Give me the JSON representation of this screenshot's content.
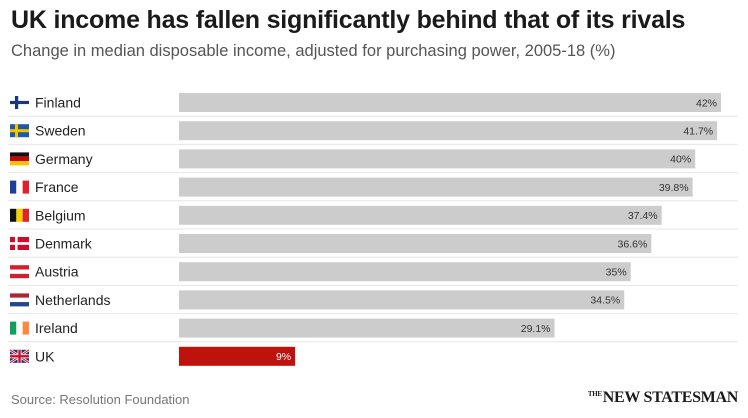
{
  "title": "UK income has fallen significantly behind that of its rivals",
  "subtitle": "Change in median disposable income, adjusted for purchasing power, 2005-18 (%)",
  "source": "Source: Resolution Foundation",
  "brand": {
    "the": "THE",
    "name": "NEW STATESMAN"
  },
  "colors": {
    "bar": "#cccccc",
    "highlight": "#c0120c",
    "label": "#333333",
    "highlight_label": "#ffffff"
  },
  "chart_data": {
    "type": "bar",
    "orientation": "horizontal",
    "title": "UK income has fallen significantly behind that of its rivals",
    "subtitle": "Change in median disposable income, adjusted for purchasing power, 2005-18 (%)",
    "categories": [
      "Finland",
      "Sweden",
      "Germany",
      "France",
      "Belgium",
      "Denmark",
      "Austria",
      "Netherlands",
      "Ireland",
      "UK"
    ],
    "values": [
      42,
      41.7,
      40,
      39.8,
      37.4,
      36.6,
      35,
      34.5,
      29.1,
      9
    ],
    "value_labels": [
      "42%",
      "41.7%",
      "40%",
      "39.8%",
      "37.4%",
      "36.6%",
      "35%",
      "34.5%",
      "29.1%",
      "9%"
    ],
    "flags": [
      "finland-flag-icon",
      "sweden-flag-icon",
      "germany-flag-icon",
      "france-flag-icon",
      "belgium-flag-icon",
      "denmark-flag-icon",
      "austria-flag-icon",
      "netherlands-flag-icon",
      "ireland-flag-icon",
      "uk-flag-icon"
    ],
    "highlight": "UK",
    "xlim": [
      0,
      42
    ],
    "grid": false,
    "legend": "none"
  }
}
